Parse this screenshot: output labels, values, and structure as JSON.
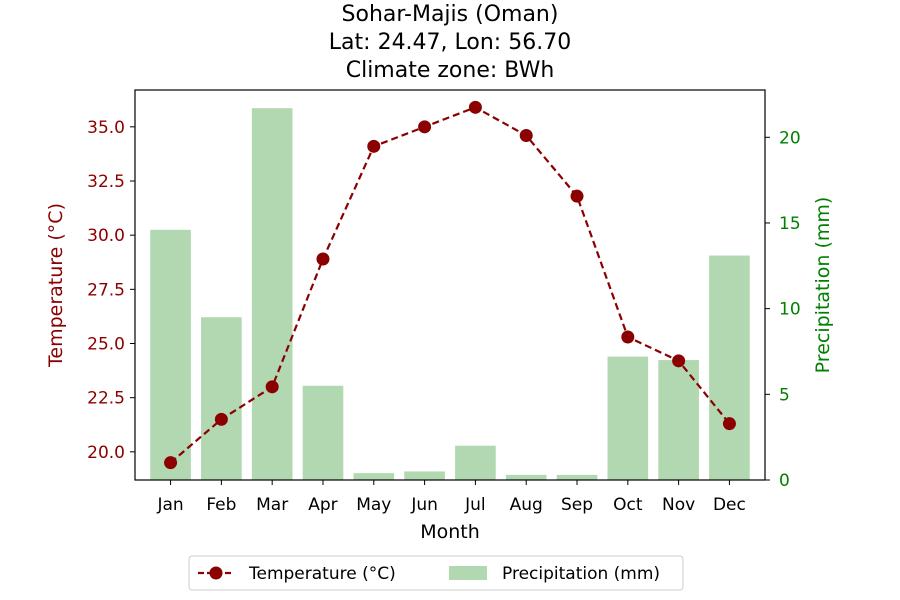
{
  "chart_data": {
    "type": "bar",
    "title_lines": [
      "Sohar-Majis (Oman)",
      "Lat: 24.47, Lon: 56.70",
      "Climate zone: BWh"
    ],
    "xlabel": "Month",
    "ylabel_left": "Temperature (°C)",
    "ylabel_right": "Precipitation (mm)",
    "categories": [
      "Jan",
      "Feb",
      "Mar",
      "Apr",
      "May",
      "Jun",
      "Jul",
      "Aug",
      "Sep",
      "Oct",
      "Nov",
      "Dec"
    ],
    "ylim_left": [
      18.7,
      36.7
    ],
    "ylim_right": [
      0,
      22.76
    ],
    "yticks_left": [
      "20.0",
      "22.5",
      "25.0",
      "27.5",
      "30.0",
      "32.5",
      "35.0"
    ],
    "yticks_right": [
      "0",
      "5",
      "10",
      "15",
      "20"
    ],
    "grid": false,
    "legend_position": "bottom-center",
    "series": [
      {
        "name": "Temperature (°C)",
        "type": "line",
        "axis": "left",
        "color": "#8b0000",
        "values": [
          19.5,
          21.5,
          23.0,
          28.9,
          34.1,
          35.0,
          35.9,
          34.6,
          31.8,
          25.3,
          24.2,
          21.3
        ]
      },
      {
        "name": "Precipitation (mm)",
        "type": "bar",
        "axis": "right",
        "color": "#b2d8b2",
        "values": [
          14.6,
          9.5,
          21.7,
          5.5,
          0.4,
          0.5,
          2.0,
          0.3,
          0.3,
          7.2,
          7.0,
          13.1
        ]
      }
    ],
    "colors": {
      "left_axis": "#8b0000",
      "right_axis": "#008000",
      "temperature": "#8b0000",
      "precipitation": "#b2d8b2"
    }
  }
}
